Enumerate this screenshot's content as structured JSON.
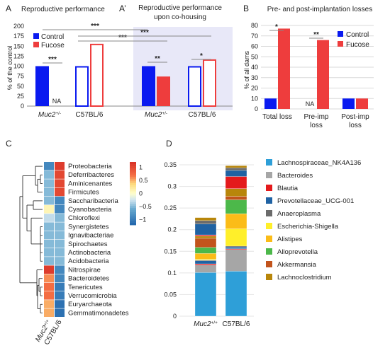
{
  "colors": {
    "control": "#0a1af0",
    "fucose": "#ee3d3d",
    "shade": "#e8e8f8",
    "sig_line": "#888888"
  },
  "panel_labels": {
    "A": "A",
    "A2": "A’",
    "B": "B",
    "C": "C",
    "D": "D"
  },
  "chart_data": [
    {
      "id": "A",
      "type": "bar",
      "title": "Reproductive performance",
      "ylabel": "% of the control",
      "ylim": [
        0,
        200
      ],
      "yticks": [
        "0",
        "25",
        "50",
        "75",
        "100",
        "125",
        "150",
        "175",
        "200"
      ],
      "categories": [
        "Muc2+/-",
        "C57BL/6"
      ],
      "category_labels": [
        {
          "base": "Muc2",
          "sup": "+/-"
        },
        {
          "base": "C57BL/6",
          "sup": ""
        }
      ],
      "series": [
        {
          "name": "Control",
          "values": [
            100,
            100
          ],
          "style": [
            "solid",
            "outline"
          ]
        },
        {
          "name": "Fucose",
          "values": [
            null,
            156
          ],
          "style": [
            "na",
            "outline"
          ]
        }
      ],
      "na_label": "NA",
      "legend": [
        "Control",
        "Fucose"
      ],
      "significance": [
        "***",
        "***",
        "***"
      ]
    },
    {
      "id": "A2",
      "type": "bar",
      "title": "Reproductive performance upon co-housing",
      "title_lines": [
        "Reproductive performance",
        "upon co-housing"
      ],
      "categories": [
        "Muc2+/-",
        "C57BL/6"
      ],
      "category_labels": [
        {
          "base": "Muc2",
          "sup": "+/-"
        },
        {
          "base": "C57BL/6",
          "sup": ""
        }
      ],
      "series": [
        {
          "name": "Control",
          "values": [
            100,
            100
          ],
          "style": [
            "solid",
            "outline"
          ]
        },
        {
          "name": "Fucose",
          "values": [
            74,
            117
          ],
          "style": [
            "solid",
            "outline"
          ]
        }
      ],
      "significance": [
        "**",
        "*",
        "***"
      ]
    },
    {
      "id": "B",
      "type": "bar",
      "title": "Pre- and post-implantation losses",
      "ylabel": "% of all dams",
      "ylim": [
        0,
        80
      ],
      "yticks": [
        "0",
        "10",
        "20",
        "30",
        "40",
        "50",
        "60",
        "70",
        "80"
      ],
      "categories": [
        "Total loss",
        "Pre-imp loss",
        "Post-imp loss"
      ],
      "category_lines": [
        [
          "Total loss"
        ],
        [
          "Pre-imp",
          "loss"
        ],
        [
          "Post-imp",
          "loss"
        ]
      ],
      "series": [
        {
          "name": "Control",
          "values": [
            10,
            null,
            10
          ]
        },
        {
          "name": "Fucose",
          "values": [
            77,
            66,
            10
          ]
        }
      ],
      "na_label": "NA",
      "legend": [
        "Control",
        "Fucose"
      ],
      "significance": [
        "*",
        "**"
      ]
    },
    {
      "id": "C",
      "type": "heatmap",
      "columns": [
        "Muc2+/+",
        "C57BL/6"
      ],
      "column_labels": [
        {
          "base": "Muc2",
          "sup": "+/+"
        },
        {
          "base": "C57BL/6",
          "sup": ""
        }
      ],
      "rows": [
        "Proteobacteria",
        "Deferribacteres",
        "Aminicenantes",
        "Firmicutes",
        "Saccharibacteria",
        "Cyanobacteria",
        "Chloroflexi",
        "Synergistetes",
        "Ignavibacteriae",
        "Spirochaetes",
        "Actinobacteria",
        "Acidobacteria",
        "Nitrospirae",
        "Bacteroidetes",
        "Tenericutes",
        "Verrucomicrobia",
        "Euryarchaeota",
        "Gemmatimonadetes"
      ],
      "values": [
        [
          -0.9,
          1.1
        ],
        [
          -0.5,
          1.0
        ],
        [
          -0.5,
          1.0
        ],
        [
          -0.5,
          1.0
        ],
        [
          -0.5,
          -0.9
        ],
        [
          0.1,
          -0.9
        ],
        [
          -0.3,
          -0.5
        ],
        [
          -0.5,
          -0.5
        ],
        [
          -0.5,
          -0.5
        ],
        [
          -0.5,
          -0.5
        ],
        [
          -0.5,
          -0.5
        ],
        [
          -0.5,
          -0.5
        ],
        [
          1.1,
          -0.9
        ],
        [
          0.6,
          -0.9
        ],
        [
          0.7,
          -1.0
        ],
        [
          0.7,
          -1.0
        ],
        [
          0.5,
          -1.1
        ],
        [
          0.5,
          -1.1
        ]
      ],
      "scale": {
        "min": -1.2,
        "max": 1.2,
        "ticks": [
          "1",
          "0.5",
          "0",
          "−0.5",
          "−1"
        ],
        "tick_values": [
          1,
          0.5,
          0,
          -0.5,
          -1
        ]
      }
    },
    {
      "id": "D",
      "type": "stacked_bar",
      "categories": [
        "Muc2+/+",
        "C57BL/6"
      ],
      "category_labels": [
        {
          "base": "Muc2",
          "sup": "+/+"
        },
        {
          "base": "C57BL/6",
          "sup": ""
        }
      ],
      "ylim": [
        0,
        0.35
      ],
      "yticks": [
        "0",
        "0.05",
        "0.1",
        "0.15",
        "0.2",
        "0.25",
        "0.3",
        "0.35"
      ],
      "series": [
        {
          "name": "Lachnospiraceae_NK4A136",
          "color": "#2e9fd8",
          "values": [
            0.101,
            0.104
          ]
        },
        {
          "name": "Bacteroides",
          "color": "#a6a6a6",
          "values": [
            0.017,
            0.05
          ]
        },
        {
          "name": "Blautia",
          "color": "#e41a1c",
          "values": [
            0.003,
            0.002
          ]
        },
        {
          "name": "Prevotellaceae_UCG-001",
          "color": "#1f62a3",
          "values": [
            0.007,
            0.004
          ]
        },
        {
          "name": "Anaeroplasma",
          "color": "#6b6b6b",
          "values": [
            0.002,
            0.002
          ]
        },
        {
          "name": "Escherichia-Shigella",
          "color": "#ffef2a",
          "values": [
            0.002,
            0.04
          ]
        },
        {
          "name": "Alistipes",
          "color": "#fbbc18",
          "values": [
            0.013,
            0.035
          ]
        },
        {
          "name": "Alloprevotella",
          "color": "#4cb84a",
          "values": [
            0.014,
            0.032
          ]
        },
        {
          "name": "Akkermansia",
          "color": "#c2541c",
          "values": [
            0.021,
            0.008
          ]
        },
        {
          "name": "Lachnoclostridium",
          "color": "#b8860b",
          "values": [
            0.005,
            0.018
          ]
        }
      ],
      "extra_segments": [
        {
          "color": "#e41a1c",
          "values": [
            0.003,
            0.028
          ]
        },
        {
          "color": "#1f62a3",
          "values": [
            0.025,
            0.014
          ]
        },
        {
          "color": "#6b6b6b",
          "values": [
            0.008,
            0.006
          ]
        },
        {
          "color": "#b8860b",
          "values": [
            0.007,
            0.005
          ]
        }
      ]
    }
  ]
}
